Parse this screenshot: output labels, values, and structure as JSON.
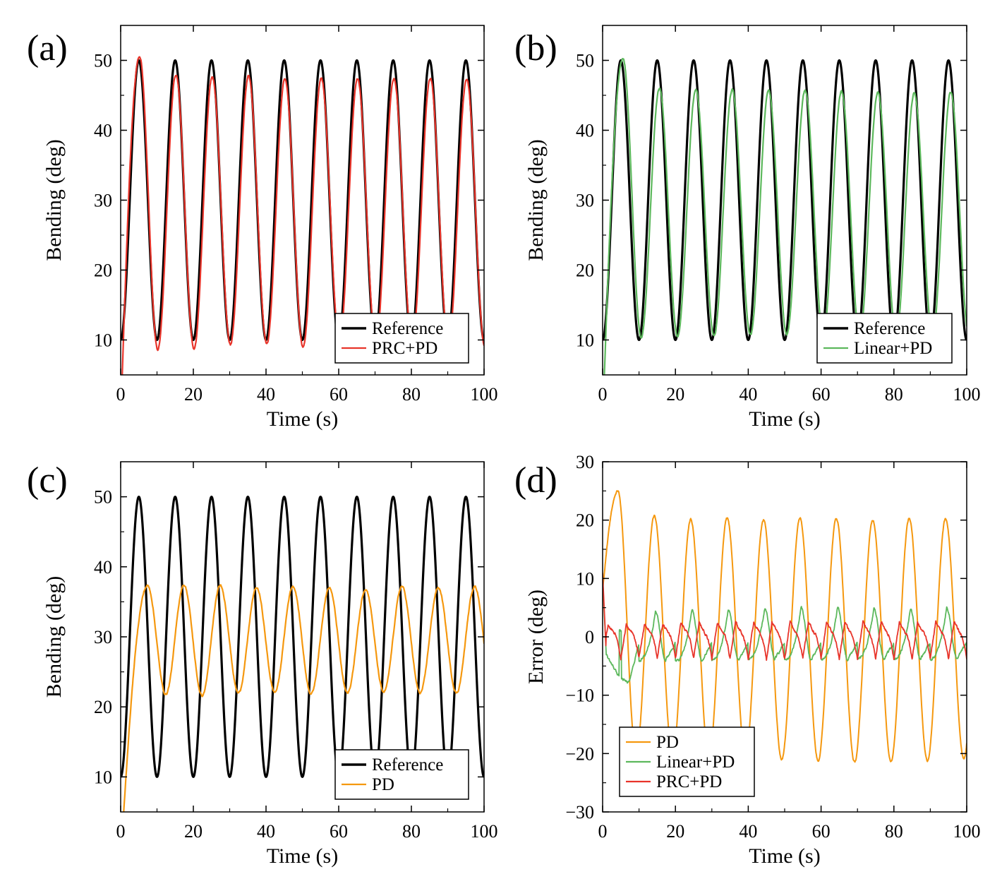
{
  "colors": {
    "reference": "#000000",
    "prc_pd": "#e8342a",
    "linear_pd": "#5cb85c",
    "pd": "#f5980f"
  },
  "chart_data": [
    {
      "panel": "(a)",
      "type": "line",
      "xlabel": "Time (s)",
      "ylabel": "Bending (deg)",
      "xlim": [
        0,
        100
      ],
      "ylim": [
        5,
        55
      ],
      "xticks": [
        "0",
        "20",
        "40",
        "60",
        "80",
        "100"
      ],
      "yticks": [
        "10",
        "20",
        "30",
        "40",
        "50"
      ],
      "legend_position": "bottom-right",
      "series": [
        {
          "name": "Reference",
          "model": "sine",
          "color": "#000000",
          "width": 3.2,
          "period": 10,
          "center": 30,
          "amplitude": 20,
          "peak_time": 5,
          "description": "y = 30 - 20*cos(2*pi*t/10)"
        },
        {
          "name": "PRC+PD",
          "model": "tracking",
          "color": "#e8342a",
          "width": 2.2,
          "period": 10,
          "peak_time": 5.2,
          "start": 5,
          "peaks": [
            50.6,
            48.0,
            47.7,
            47.8,
            47.3,
            47.5,
            47.4,
            47.4,
            47.4,
            47.3
          ],
          "troughs": [
            8.6,
            8.7,
            9.3,
            9.4,
            9.0,
            9.6,
            9.4,
            9.4,
            9.4,
            9.1
          ],
          "noise": 0.25
        }
      ]
    },
    {
      "panel": "(b)",
      "type": "line",
      "xlabel": "Time (s)",
      "ylabel": "Bending (deg)",
      "xlim": [
        0,
        100
      ],
      "ylim": [
        5,
        55
      ],
      "xticks": [
        "0",
        "20",
        "40",
        "60",
        "80",
        "100"
      ],
      "yticks": [
        "10",
        "20",
        "30",
        "40",
        "50"
      ],
      "legend_position": "bottom-right",
      "series": [
        {
          "name": "Reference",
          "model": "sine",
          "color": "#000000",
          "width": 3.2,
          "period": 10,
          "center": 30,
          "amplitude": 20,
          "peak_time": 5
        },
        {
          "name": "Linear+PD",
          "model": "tracking",
          "color": "#5cb85c",
          "width": 2.2,
          "period": 10,
          "peak_time": 5.6,
          "start": 2,
          "peaks": [
            50.3,
            46.0,
            45.8,
            45.8,
            45.6,
            45.7,
            45.5,
            45.4,
            45.3,
            45.4
          ],
          "troughs": [
            10.4,
            10.5,
            10.6,
            10.7,
            10.8,
            10.7,
            10.7,
            10.6,
            10.6,
            10.6
          ],
          "noise": 0.25
        }
      ]
    },
    {
      "panel": "(c)",
      "type": "line",
      "xlabel": "Time (s)",
      "ylabel": "Bending (deg)",
      "xlim": [
        0,
        100
      ],
      "ylim": [
        5,
        55
      ],
      "xticks": [
        "0",
        "20",
        "40",
        "60",
        "80",
        "100"
      ],
      "yticks": [
        "10",
        "20",
        "30",
        "40",
        "50"
      ],
      "legend_position": "bottom-right",
      "series": [
        {
          "name": "Reference",
          "model": "sine",
          "color": "#000000",
          "width": 3.2,
          "period": 10,
          "center": 30,
          "amplitude": 20,
          "peak_time": 5
        },
        {
          "name": "PD",
          "model": "tracking",
          "color": "#f5980f",
          "width": 2.2,
          "period": 10,
          "peak_time": 7.4,
          "start": 4,
          "peaks": [
            37.3,
            37.4,
            37.3,
            37.0,
            37.2,
            37.0,
            36.8,
            37.2,
            37.0,
            37.2
          ],
          "troughs": [
            21.8,
            21.6,
            22.0,
            22.1,
            21.9,
            22.0,
            22.1,
            22.0,
            22.0,
            22.0
          ],
          "noise": 0.25
        }
      ]
    },
    {
      "panel": "(d)",
      "type": "line",
      "xlabel": "Time (s)",
      "ylabel": "Error (deg)",
      "xlim": [
        0,
        100
      ],
      "ylim": [
        -30,
        30
      ],
      "xticks": [
        "0",
        "20",
        "40",
        "60",
        "80",
        "100"
      ],
      "yticks": [
        "−30",
        "−20",
        "−10",
        "0",
        "10",
        "20",
        "30"
      ],
      "yticks_values": [
        -30,
        -20,
        -10,
        0,
        10,
        20,
        30
      ],
      "legend_position": "bottom-left",
      "series": [
        {
          "name": "PD",
          "model": "error_pd",
          "color": "#f5980f",
          "width": 2.0,
          "period": 10,
          "peak_time": 4.2,
          "peaks": [
            25.0,
            20.7,
            20.1,
            20.4,
            20.0,
            20.4,
            20.3,
            20.0,
            20.3,
            20.2
          ],
          "troughs": [
            -20.0,
            -20.5,
            -20.8,
            -20.6,
            -21.0,
            -21.2,
            -21.5,
            -21.3,
            -21.2,
            -20.8
          ],
          "noise": 0.3
        },
        {
          "name": "Linear+PD",
          "model": "error_linear",
          "color": "#5cb85c",
          "width": 1.8,
          "period": 10,
          "peaks": [
            1.0,
            4.3,
            4.5,
            4.6,
            4.8,
            5.0,
            4.9,
            4.8,
            4.7,
            5.0
          ],
          "troughs": [
            -7.8,
            -4.0,
            -4.2,
            -4.0,
            -3.8,
            -4.0,
            -3.9,
            -3.8,
            -3.8,
            -3.8
          ],
          "noise": 0.45
        },
        {
          "name": "PRC+PD",
          "model": "error_prc",
          "color": "#e8342a",
          "width": 1.8,
          "period": 10,
          "peaks": [
            2.0,
            2.2,
            2.4,
            2.5,
            2.6,
            2.6,
            2.5,
            2.6,
            2.5,
            2.6
          ],
          "troughs": [
            -3.8,
            -3.6,
            -3.7,
            -3.8,
            -3.9,
            -3.8,
            -3.9,
            -3.8,
            -3.8,
            -3.8
          ],
          "noise": 0.45
        }
      ]
    }
  ]
}
